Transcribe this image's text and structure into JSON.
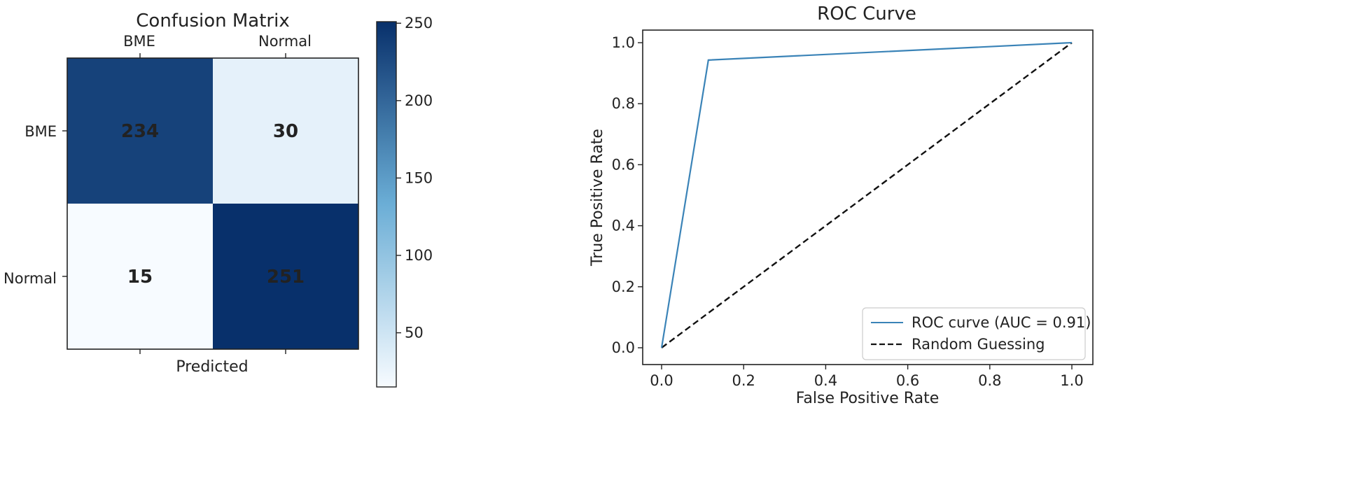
{
  "chart_data": [
    {
      "type": "heatmap",
      "title": "Confusion Matrix",
      "xlabel": "Predicted",
      "ylabel": "",
      "x_categories": [
        "BME",
        "Normal"
      ],
      "y_categories": [
        "BME",
        "Normal"
      ],
      "x_tick_position": "top",
      "values": [
        [
          234,
          30
        ],
        [
          15,
          251
        ]
      ],
      "cell_labels": [
        "234",
        "30",
        "15",
        "251"
      ],
      "colormap": "Blues",
      "colorbar": {
        "range": [
          15,
          251
        ],
        "ticks": [
          50,
          100,
          150,
          200,
          250
        ],
        "tick_labels": [
          "50",
          "100",
          "150",
          "200",
          "250"
        ]
      },
      "colors": {
        "low": "#f7fbff",
        "mid": "#6baed6",
        "high": "#08306b"
      }
    },
    {
      "type": "line",
      "title": "ROC Curve",
      "xlabel": "False Positive Rate",
      "ylabel": "True Positive Rate",
      "xlim": [
        0.0,
        1.0
      ],
      "ylim": [
        0.0,
        1.0
      ],
      "x_ticks": [
        0.0,
        0.2,
        0.4,
        0.6,
        0.8,
        1.0
      ],
      "x_tick_labels": [
        "0.0",
        "0.2",
        "0.4",
        "0.6",
        "0.8",
        "1.0"
      ],
      "y_ticks": [
        0.0,
        0.2,
        0.4,
        0.6,
        0.8,
        1.0
      ],
      "y_tick_labels": [
        "0.0",
        "0.2",
        "0.4",
        "0.6",
        "0.8",
        "1.0"
      ],
      "grid": false,
      "legend_position": "bottom-right",
      "series": [
        {
          "name": "ROC curve (AUC = 0.91)",
          "x": [
            0.0,
            0.114,
            1.0
          ],
          "y": [
            0.0,
            0.943,
            1.0
          ],
          "color": "#3a83b7",
          "style": "solid"
        },
        {
          "name": "Random Guessing",
          "x": [
            0.0,
            1.0
          ],
          "y": [
            0.0,
            1.0
          ],
          "color": "#111111",
          "style": "dashed"
        }
      ]
    }
  ]
}
